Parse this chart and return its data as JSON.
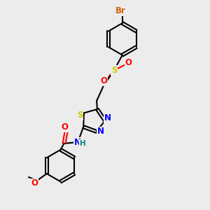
{
  "background_color": "#ececec",
  "bond_color": "#000000",
  "atom_colors": {
    "Br": "#cc6600",
    "O": "#ff0000",
    "S": "#cccc00",
    "N": "#0000ff",
    "H": "#008080",
    "C": "#000000"
  },
  "figsize": [
    3.0,
    3.0
  ],
  "dpi": 100,
  "lw": 1.5,
  "fs": 8.5
}
